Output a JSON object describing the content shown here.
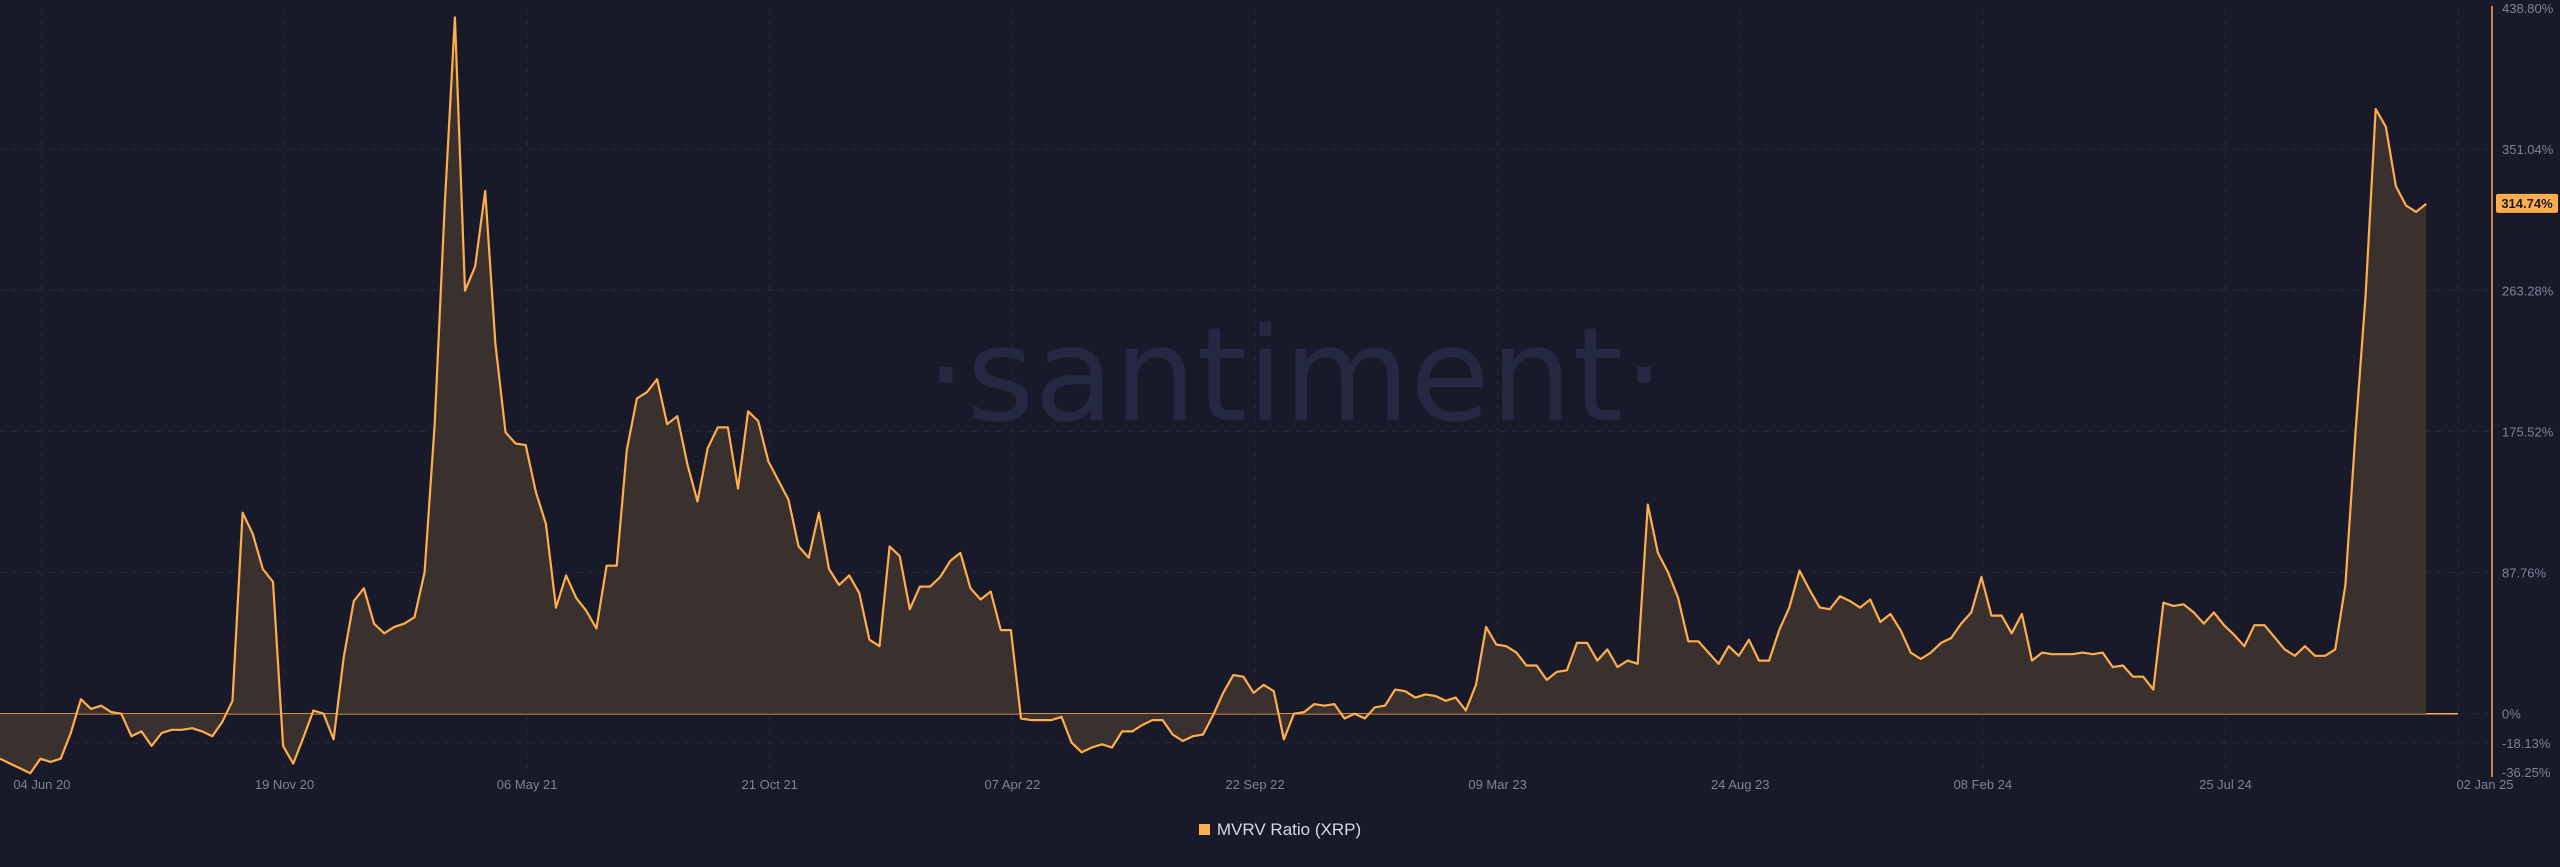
{
  "watermark": "·santiment·",
  "legend": {
    "label": "MVRV Ratio (XRP)",
    "color": "#ffad4d"
  },
  "colors": {
    "background": "#181a2a",
    "line": "#ffad4d",
    "area": "#3a302e",
    "grid": "#262a3c",
    "text": "#7d8294"
  },
  "chart_data": {
    "type": "area",
    "series": [
      {
        "name": "MVRV Ratio (XRP)",
        "unit": "%"
      }
    ],
    "y_ticks": [
      "438.80%",
      "351.04%",
      "263.28%",
      "175.52%",
      "87.76%",
      "0%",
      "-18.13%",
      "-36.25%"
    ],
    "y_tick_values": [
      438.8,
      351.04,
      263.28,
      175.52,
      87.76,
      0,
      -18.13,
      -36.25
    ],
    "ylim": [
      -36.25,
      438.8
    ],
    "x_ticks": [
      "04 Jun 20",
      "19 Nov 20",
      "06 May 21",
      "21 Oct 21",
      "07 Apr 22",
      "22 Sep 22",
      "09 Mar 23",
      "24 Aug 23",
      "08 Feb 24",
      "25 Jul 24",
      "02 Jan 25"
    ],
    "x_tick_dates": [
      "2020-06-04",
      "2020-11-19",
      "2021-05-06",
      "2021-10-21",
      "2022-04-07",
      "2022-09-22",
      "2023-03-09",
      "2023-08-24",
      "2024-02-08",
      "2024-07-25",
      "2025-01-02"
    ],
    "x_range": [
      "2020-05-06",
      "2025-01-02"
    ],
    "last_value": "314.74%",
    "grid": true,
    "legend_position": "bottom-center",
    "points": [
      [
        "2020-05-06",
        -28
      ],
      [
        "2020-05-13",
        -31
      ],
      [
        "2020-05-20",
        -34
      ],
      [
        "2020-05-27",
        -37
      ],
      [
        "2020-06-03",
        -28
      ],
      [
        "2020-06-10",
        -30
      ],
      [
        "2020-06-17",
        -28
      ],
      [
        "2020-06-24",
        -12
      ],
      [
        "2020-07-01",
        9
      ],
      [
        "2020-07-08",
        3
      ],
      [
        "2020-07-15",
        5
      ],
      [
        "2020-07-22",
        1
      ],
      [
        "2020-07-29",
        0
      ],
      [
        "2020-08-05",
        -14
      ],
      [
        "2020-08-12",
        -11
      ],
      [
        "2020-08-19",
        -20
      ],
      [
        "2020-08-26",
        -12
      ],
      [
        "2020-09-02",
        -10
      ],
      [
        "2020-09-09",
        -10
      ],
      [
        "2020-09-16",
        -9
      ],
      [
        "2020-09-23",
        -11
      ],
      [
        "2020-09-30",
        -14
      ],
      [
        "2020-10-07",
        -5
      ],
      [
        "2020-10-14",
        8
      ],
      [
        "2020-10-21",
        125
      ],
      [
        "2020-10-28",
        112
      ],
      [
        "2020-11-04",
        90
      ],
      [
        "2020-11-11",
        82
      ],
      [
        "2020-11-18",
        -20
      ],
      [
        "2020-11-25",
        -31
      ],
      [
        "2020-12-02",
        -15
      ],
      [
        "2020-12-09",
        2
      ],
      [
        "2020-12-16",
        0
      ],
      [
        "2020-12-23",
        -16
      ],
      [
        "2020-12-30",
        35
      ],
      [
        "2021-01-06",
        70
      ],
      [
        "2021-01-13",
        78
      ],
      [
        "2021-01-20",
        56
      ],
      [
        "2021-01-27",
        50
      ],
      [
        "2021-02-03",
        54
      ],
      [
        "2021-02-10",
        56
      ],
      [
        "2021-02-17",
        60
      ],
      [
        "2021-02-24",
        88
      ],
      [
        "2021-03-03",
        180
      ],
      [
        "2021-03-10",
        317
      ],
      [
        "2021-03-17",
        433
      ],
      [
        "2021-03-24",
        263
      ],
      [
        "2021-03-31",
        278
      ],
      [
        "2021-04-07",
        325
      ],
      [
        "2021-04-14",
        230
      ],
      [
        "2021-04-21",
        175
      ],
      [
        "2021-04-28",
        168
      ],
      [
        "2021-05-05",
        167
      ],
      [
        "2021-05-12",
        138
      ],
      [
        "2021-05-19",
        118
      ],
      [
        "2021-05-26",
        66
      ],
      [
        "2021-06-02",
        86
      ],
      [
        "2021-06-09",
        72
      ],
      [
        "2021-06-16",
        64
      ],
      [
        "2021-06-23",
        53
      ],
      [
        "2021-06-30",
        92
      ],
      [
        "2021-07-07",
        92
      ],
      [
        "2021-07-14",
        164
      ],
      [
        "2021-07-21",
        196
      ],
      [
        "2021-07-28",
        200
      ],
      [
        "2021-08-04",
        208
      ],
      [
        "2021-08-11",
        180
      ],
      [
        "2021-08-18",
        185
      ],
      [
        "2021-08-25",
        155
      ],
      [
        "2021-09-01",
        132
      ],
      [
        "2021-09-08",
        165
      ],
      [
        "2021-09-15",
        178
      ],
      [
        "2021-09-22",
        178
      ],
      [
        "2021-09-29",
        140
      ],
      [
        "2021-10-06",
        188
      ],
      [
        "2021-10-13",
        182
      ],
      [
        "2021-10-20",
        157
      ],
      [
        "2021-10-27",
        145
      ],
      [
        "2021-11-03",
        133
      ],
      [
        "2021-11-10",
        104
      ],
      [
        "2021-11-17",
        97
      ],
      [
        "2021-11-24",
        125
      ],
      [
        "2021-12-01",
        90
      ],
      [
        "2021-12-08",
        80
      ],
      [
        "2021-12-15",
        86
      ],
      [
        "2021-12-22",
        75
      ],
      [
        "2021-12-29",
        46
      ],
      [
        "2022-01-05",
        42
      ],
      [
        "2022-01-12",
        104
      ],
      [
        "2022-01-19",
        98
      ],
      [
        "2022-01-26",
        65
      ],
      [
        "2022-02-02",
        79
      ],
      [
        "2022-02-09",
        79
      ],
      [
        "2022-02-16",
        85
      ],
      [
        "2022-02-23",
        95
      ],
      [
        "2022-03-02",
        100
      ],
      [
        "2022-03-09",
        78
      ],
      [
        "2022-03-16",
        71
      ],
      [
        "2022-03-23",
        76
      ],
      [
        "2022-03-30",
        52
      ],
      [
        "2022-04-06",
        52
      ],
      [
        "2022-04-13",
        -3
      ],
      [
        "2022-04-20",
        -4
      ],
      [
        "2022-04-27",
        -4
      ],
      [
        "2022-05-04",
        -4
      ],
      [
        "2022-05-11",
        -2
      ],
      [
        "2022-05-18",
        -18
      ],
      [
        "2022-05-25",
        -24
      ],
      [
        "2022-06-01",
        -21
      ],
      [
        "2022-06-08",
        -19
      ],
      [
        "2022-06-15",
        -21
      ],
      [
        "2022-06-22",
        -11
      ],
      [
        "2022-06-29",
        -11
      ],
      [
        "2022-07-06",
        -7
      ],
      [
        "2022-07-13",
        -4
      ],
      [
        "2022-07-20",
        -4
      ],
      [
        "2022-07-27",
        -13
      ],
      [
        "2022-08-03",
        -17
      ],
      [
        "2022-08-10",
        -14
      ],
      [
        "2022-08-17",
        -13
      ],
      [
        "2022-08-24",
        -1
      ],
      [
        "2022-08-31",
        13
      ],
      [
        "2022-09-07",
        24
      ],
      [
        "2022-09-14",
        23
      ],
      [
        "2022-09-21",
        13
      ],
      [
        "2022-09-28",
        18
      ],
      [
        "2022-10-05",
        14
      ],
      [
        "2022-10-12",
        -16
      ],
      [
        "2022-10-19",
        0
      ],
      [
        "2022-10-26",
        1
      ],
      [
        "2022-11-02",
        6
      ],
      [
        "2022-11-09",
        5
      ],
      [
        "2022-11-16",
        6
      ],
      [
        "2022-11-23",
        -3
      ],
      [
        "2022-11-30",
        0
      ],
      [
        "2022-12-07",
        -3
      ],
      [
        "2022-12-14",
        4
      ],
      [
        "2022-12-21",
        5
      ],
      [
        "2022-12-28",
        15
      ],
      [
        "2023-01-04",
        14
      ],
      [
        "2023-01-11",
        10
      ],
      [
        "2023-01-18",
        12
      ],
      [
        "2023-01-25",
        11
      ],
      [
        "2023-02-01",
        8
      ],
      [
        "2023-02-08",
        10
      ],
      [
        "2023-02-15",
        2
      ],
      [
        "2023-02-22",
        18
      ],
      [
        "2023-03-01",
        54
      ],
      [
        "2023-03-08",
        43
      ],
      [
        "2023-03-15",
        42
      ],
      [
        "2023-03-22",
        38
      ],
      [
        "2023-03-29",
        30
      ],
      [
        "2023-04-05",
        30
      ],
      [
        "2023-04-12",
        21
      ],
      [
        "2023-04-19",
        26
      ],
      [
        "2023-04-26",
        27
      ],
      [
        "2023-05-03",
        44
      ],
      [
        "2023-05-10",
        44
      ],
      [
        "2023-05-17",
        33
      ],
      [
        "2023-05-24",
        40
      ],
      [
        "2023-05-31",
        29
      ],
      [
        "2023-06-07",
        33
      ],
      [
        "2023-06-14",
        31
      ],
      [
        "2023-06-21",
        130
      ],
      [
        "2023-06-28",
        100
      ],
      [
        "2023-07-05",
        88
      ],
      [
        "2023-07-12",
        72
      ],
      [
        "2023-07-19",
        45
      ],
      [
        "2023-07-26",
        45
      ],
      [
        "2023-08-02",
        38
      ],
      [
        "2023-08-09",
        31
      ],
      [
        "2023-08-16",
        42
      ],
      [
        "2023-08-23",
        36
      ],
      [
        "2023-08-30",
        46
      ],
      [
        "2023-09-06",
        33
      ],
      [
        "2023-09-13",
        33
      ],
      [
        "2023-09-20",
        52
      ],
      [
        "2023-09-27",
        66
      ],
      [
        "2023-10-04",
        89
      ],
      [
        "2023-10-11",
        77
      ],
      [
        "2023-10-18",
        66
      ],
      [
        "2023-10-25",
        65
      ],
      [
        "2023-11-01",
        73
      ],
      [
        "2023-11-08",
        70
      ],
      [
        "2023-11-15",
        66
      ],
      [
        "2023-11-22",
        71
      ],
      [
        "2023-11-29",
        57
      ],
      [
        "2023-12-06",
        62
      ],
      [
        "2023-12-13",
        52
      ],
      [
        "2023-12-20",
        38
      ],
      [
        "2023-12-27",
        34
      ],
      [
        "2024-01-03",
        38
      ],
      [
        "2024-01-10",
        44
      ],
      [
        "2024-01-17",
        47
      ],
      [
        "2024-01-24",
        56
      ],
      [
        "2024-01-31",
        63
      ],
      [
        "2024-02-07",
        85
      ],
      [
        "2024-02-14",
        61
      ],
      [
        "2024-02-21",
        61
      ],
      [
        "2024-02-28",
        50
      ],
      [
        "2024-03-06",
        62
      ],
      [
        "2024-03-13",
        33
      ],
      [
        "2024-03-20",
        38
      ],
      [
        "2024-03-27",
        37
      ],
      [
        "2024-04-03",
        37
      ],
      [
        "2024-04-10",
        37
      ],
      [
        "2024-04-17",
        38
      ],
      [
        "2024-04-24",
        37
      ],
      [
        "2024-05-01",
        38
      ],
      [
        "2024-05-08",
        29
      ],
      [
        "2024-05-15",
        30
      ],
      [
        "2024-05-22",
        23
      ],
      [
        "2024-05-29",
        23
      ],
      [
        "2024-06-05",
        15
      ],
      [
        "2024-06-12",
        69
      ],
      [
        "2024-06-19",
        67
      ],
      [
        "2024-06-26",
        68
      ],
      [
        "2024-07-03",
        63
      ],
      [
        "2024-07-10",
        56
      ],
      [
        "2024-07-17",
        63
      ],
      [
        "2024-07-24",
        55
      ],
      [
        "2024-07-31",
        49
      ],
      [
        "2024-08-07",
        42
      ],
      [
        "2024-08-14",
        55
      ],
      [
        "2024-08-21",
        55
      ],
      [
        "2024-09-04",
        40
      ],
      [
        "2024-09-11",
        36
      ],
      [
        "2024-09-18",
        42
      ],
      [
        "2024-09-25",
        36
      ],
      [
        "2024-10-02",
        36
      ],
      [
        "2024-10-09",
        40
      ],
      [
        "2024-10-16",
        80
      ],
      [
        "2024-10-23",
        175
      ],
      [
        "2024-10-30",
        260
      ],
      [
        "2024-11-06",
        376
      ],
      [
        "2024-11-13",
        365
      ],
      [
        "2024-11-20",
        328
      ],
      [
        "2024-11-27",
        316
      ],
      [
        "2024-12-04",
        312
      ],
      [
        "2024-12-11",
        317
      ]
    ]
  }
}
